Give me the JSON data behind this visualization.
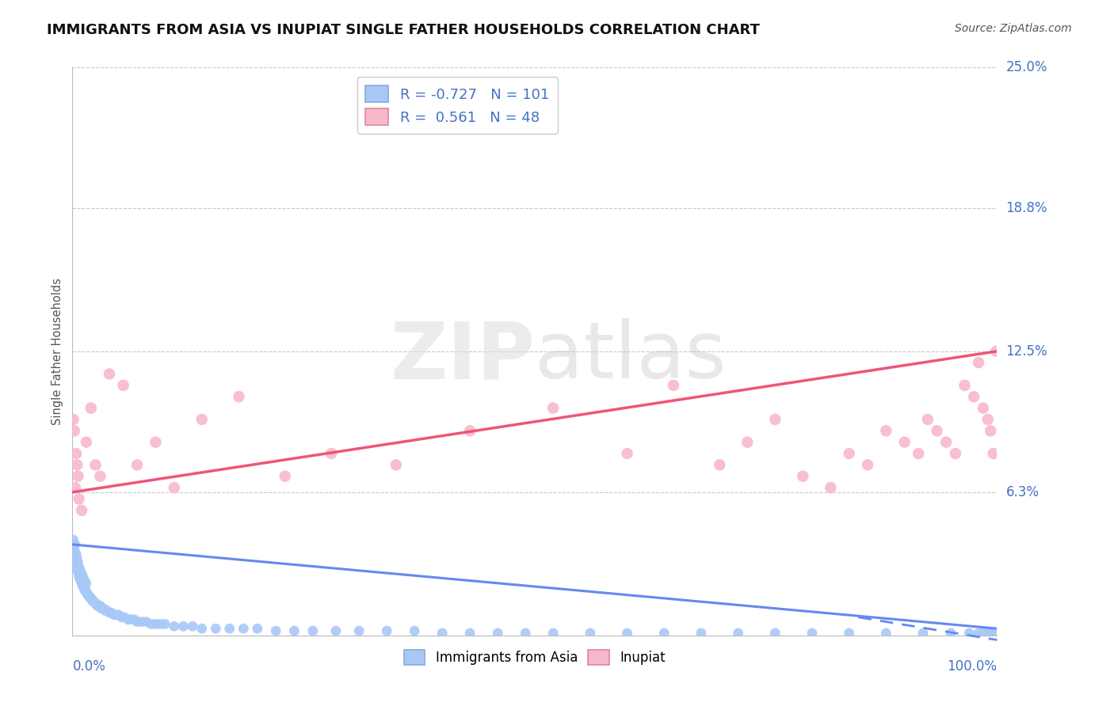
{
  "title": "IMMIGRANTS FROM ASIA VS INUPIAT SINGLE FATHER HOUSEHOLDS CORRELATION CHART",
  "source": "Source: ZipAtlas.com",
  "ylabel": "Single Father Households",
  "blue_R": -0.727,
  "blue_N": 101,
  "pink_R": 0.561,
  "pink_N": 48,
  "blue_label": "Immigrants from Asia",
  "pink_label": "Inupiat",
  "xlim": [
    0.0,
    1.0
  ],
  "ylim": [
    0.0,
    0.25
  ],
  "yticks": [
    0.0,
    0.063,
    0.125,
    0.188,
    0.25
  ],
  "ytick_labels": [
    "",
    "6.3%",
    "12.5%",
    "18.8%",
    "25.0%"
  ],
  "title_fontsize": 13,
  "axis_label_color": "#4472C4",
  "legend_value_color": "#4472C4",
  "blue_dot_color": "#A8C8F8",
  "pink_dot_color": "#F8B8CC",
  "blue_line_color": "#6688EE",
  "pink_line_color": "#EE5577",
  "background_color": "#FFFFFF",
  "grid_color": "#BBBBBB",
  "blue_trend_y_start": 0.04,
  "blue_trend_y_end": 0.003,
  "pink_trend_y_start": 0.063,
  "pink_trend_y_end": 0.125,
  "blue_dots_x": [
    0.001,
    0.002,
    0.003,
    0.003,
    0.004,
    0.004,
    0.005,
    0.005,
    0.006,
    0.006,
    0.007,
    0.007,
    0.008,
    0.008,
    0.009,
    0.009,
    0.01,
    0.01,
    0.011,
    0.011,
    0.012,
    0.012,
    0.013,
    0.013,
    0.014,
    0.015,
    0.015,
    0.016,
    0.017,
    0.018,
    0.019,
    0.02,
    0.021,
    0.022,
    0.023,
    0.025,
    0.026,
    0.027,
    0.028,
    0.03,
    0.031,
    0.033,
    0.035,
    0.037,
    0.04,
    0.042,
    0.045,
    0.048,
    0.05,
    0.053,
    0.056,
    0.06,
    0.063,
    0.067,
    0.07,
    0.075,
    0.08,
    0.085,
    0.09,
    0.095,
    0.1,
    0.11,
    0.12,
    0.13,
    0.14,
    0.155,
    0.17,
    0.185,
    0.2,
    0.22,
    0.24,
    0.26,
    0.285,
    0.31,
    0.34,
    0.37,
    0.4,
    0.43,
    0.46,
    0.49,
    0.52,
    0.56,
    0.6,
    0.64,
    0.68,
    0.72,
    0.76,
    0.8,
    0.84,
    0.88,
    0.92,
    0.95,
    0.97,
    0.98,
    0.985,
    0.99,
    0.992,
    0.995,
    0.997,
    0.999,
    1.0
  ],
  "blue_dots_y": [
    0.042,
    0.038,
    0.035,
    0.04,
    0.032,
    0.036,
    0.03,
    0.034,
    0.028,
    0.032,
    0.026,
    0.03,
    0.025,
    0.029,
    0.024,
    0.028,
    0.023,
    0.027,
    0.022,
    0.026,
    0.021,
    0.025,
    0.02,
    0.024,
    0.02,
    0.019,
    0.023,
    0.018,
    0.018,
    0.017,
    0.017,
    0.016,
    0.016,
    0.015,
    0.015,
    0.014,
    0.014,
    0.013,
    0.013,
    0.013,
    0.012,
    0.012,
    0.011,
    0.011,
    0.01,
    0.01,
    0.009,
    0.009,
    0.009,
    0.008,
    0.008,
    0.007,
    0.007,
    0.007,
    0.006,
    0.006,
    0.006,
    0.005,
    0.005,
    0.005,
    0.005,
    0.004,
    0.004,
    0.004,
    0.003,
    0.003,
    0.003,
    0.003,
    0.003,
    0.002,
    0.002,
    0.002,
    0.002,
    0.002,
    0.002,
    0.002,
    0.001,
    0.001,
    0.001,
    0.001,
    0.001,
    0.001,
    0.001,
    0.001,
    0.001,
    0.001,
    0.001,
    0.001,
    0.001,
    0.001,
    0.001,
    0.001,
    0.001,
    0.001,
    0.001,
    0.001,
    0.001,
    0.001,
    0.001,
    0.001,
    0.001
  ],
  "pink_dots_x": [
    0.001,
    0.002,
    0.003,
    0.004,
    0.005,
    0.006,
    0.007,
    0.01,
    0.015,
    0.02,
    0.025,
    0.03,
    0.04,
    0.055,
    0.07,
    0.09,
    0.11,
    0.14,
    0.18,
    0.23,
    0.28,
    0.35,
    0.43,
    0.52,
    0.6,
    0.65,
    0.7,
    0.73,
    0.76,
    0.79,
    0.82,
    0.84,
    0.86,
    0.88,
    0.9,
    0.915,
    0.925,
    0.935,
    0.945,
    0.955,
    0.965,
    0.975,
    0.98,
    0.985,
    0.99,
    0.993,
    0.996,
    0.999
  ],
  "pink_dots_y": [
    0.095,
    0.09,
    0.065,
    0.08,
    0.075,
    0.07,
    0.06,
    0.055,
    0.085,
    0.1,
    0.075,
    0.07,
    0.115,
    0.11,
    0.075,
    0.085,
    0.065,
    0.095,
    0.105,
    0.07,
    0.08,
    0.075,
    0.09,
    0.1,
    0.08,
    0.11,
    0.075,
    0.085,
    0.095,
    0.07,
    0.065,
    0.08,
    0.075,
    0.09,
    0.085,
    0.08,
    0.095,
    0.09,
    0.085,
    0.08,
    0.11,
    0.105,
    0.12,
    0.1,
    0.095,
    0.09,
    0.08,
    0.125
  ]
}
